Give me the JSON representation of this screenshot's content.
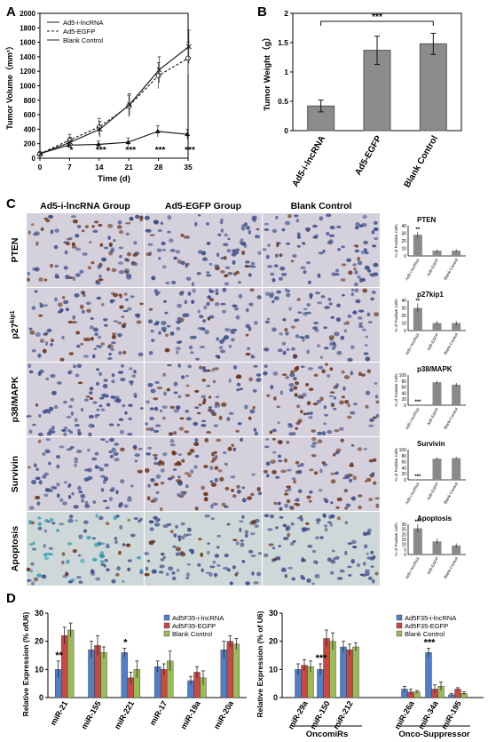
{
  "panels": {
    "A": {
      "letter": "A",
      "chart_data": {
        "type": "line",
        "xlabel": "Time (d)",
        "ylabel": "Tumor Volume（mm³）",
        "x": [
          0,
          7,
          14,
          21,
          28,
          35
        ],
        "xlim": [
          0,
          35
        ],
        "ylim": [
          0,
          2000
        ],
        "xticks": [
          0,
          7,
          14,
          21,
          28,
          35
        ],
        "yticks": [
          0,
          200,
          400,
          600,
          800,
          1000,
          1200,
          1400,
          1600,
          1800,
          2000
        ],
        "legend_position": "top-left",
        "series": [
          {
            "name": "Ad5-i-lncRNA",
            "values": [
              60,
              180,
              190,
              220,
              370,
              330
            ],
            "err": [
              20,
              40,
              50,
              60,
              80,
              70
            ],
            "marker": "triangle",
            "dash": "none"
          },
          {
            "name": "Ad5-EGFP",
            "values": [
              60,
              250,
              430,
              720,
              1140,
              1380
            ],
            "err": [
              20,
              80,
              120,
              150,
              180,
              220
            ],
            "marker": "open-circle",
            "dash": "dash"
          },
          {
            "name": "Blank Control",
            "values": [
              60,
              220,
              400,
              740,
              1220,
              1540
            ],
            "err": [
              20,
              70,
              110,
              150,
              180,
              230
            ],
            "marker": "x",
            "dash": "none"
          }
        ],
        "annotations": [
          {
            "x": 7,
            "text": "*"
          },
          {
            "x": 14,
            "text": "***"
          },
          {
            "x": 21,
            "text": "***"
          },
          {
            "x": 28,
            "text": "***"
          },
          {
            "x": 35,
            "text": "***"
          }
        ]
      }
    },
    "B": {
      "letter": "B",
      "chart_data": {
        "type": "bar",
        "ylabel": "Tumor Weight（g）",
        "categories": [
          "Ad5-i-lncRNA",
          "Ad5-EGFP",
          "Blank Control"
        ],
        "values": [
          0.42,
          1.37,
          1.48
        ],
        "err": [
          0.1,
          0.24,
          0.18
        ],
        "ylim": [
          0,
          2
        ],
        "yticks": [
          0,
          0.5,
          1,
          1.5,
          2
        ],
        "significance": "***"
      }
    },
    "C": {
      "letter": "C",
      "column_headers": [
        "Ad5-i-lncRNA Group",
        "Ad5-EGFP Group",
        "Blank Control"
      ],
      "row_labels": [
        "PTEN",
        "p27",
        "p38/MAPK",
        "Survivin",
        "Apoptosis"
      ],
      "p27_superscript": "kip1",
      "minichart_ylabel": "% of Positive Cells",
      "minichart_categories": [
        "Ad5-i-lncRNA",
        "Ad5-EGFP",
        "Blank Control"
      ],
      "minicharts": [
        {
          "title": "PTEN",
          "values": [
            28,
            7,
            7
          ],
          "err": [
            4,
            2,
            2
          ],
          "ymax": 40,
          "yticks": [
            0,
            10,
            20,
            30,
            40
          ],
          "stars": "**",
          "star_index": 0
        },
        {
          "title": "p27kip1",
          "values": [
            30,
            10,
            10
          ],
          "err": [
            6,
            3,
            3
          ],
          "ymax": 40,
          "yticks": [
            0,
            10,
            20,
            30,
            40
          ],
          "stars": "**",
          "star_index": 0
        },
        {
          "title": "p38/MAPK",
          "values": [
            2,
            76,
            68
          ],
          "err": [
            1,
            5,
            6
          ],
          "ymax": 100,
          "yticks": [
            0,
            20,
            40,
            60,
            80,
            100
          ],
          "stars": "***",
          "star_index": 0
        },
        {
          "title": "Survivin",
          "values": [
            2,
            70,
            72
          ],
          "err": [
            1,
            5,
            4
          ],
          "ymax": 100,
          "yticks": [
            0,
            20,
            40,
            60,
            80,
            100
          ],
          "stars": "***",
          "star_index": 0
        },
        {
          "title": "Apoptosis",
          "values": [
            26,
            13,
            9
          ],
          "err": [
            4,
            3,
            2
          ],
          "ymax": 30,
          "yticks": [
            0,
            5,
            10,
            15,
            20,
            25,
            30
          ],
          "stars": "***",
          "star_index": 0
        }
      ],
      "stain_colors": {
        "brown": "#6b3418",
        "blue": "#3f4f8a",
        "bg": "#d4d0dc",
        "apop_bg": "#cfd8d8",
        "apop_teal": "#3aa0b6"
      }
    },
    "D": {
      "letter": "D",
      "left": {
        "chart_data": {
          "type": "bar",
          "ylabel": "Relative Expression (% ofU6)",
          "categories": [
            "miR-21",
            "miR-155",
            "miR-221",
            "miR-17",
            "miR-19a",
            "miR-20a"
          ],
          "series": [
            {
              "name": "Ad5F35-i-lncRNA",
              "color": "#4f7fc8",
              "values": [
                10,
                17,
                16,
                11,
                6,
                17
              ],
              "err": [
                3,
                3,
                1.5,
                2,
                1.5,
                3
              ]
            },
            {
              "name": "Ad5F35-EGFP",
              "color": "#c84844",
              "values": [
                22,
                18.5,
                7,
                10,
                9,
                20
              ],
              "err": [
                3,
                3.5,
                2,
                2,
                2,
                2
              ]
            },
            {
              "name": "Blank Control",
              "color": "#9bbb59",
              "values": [
                24,
                16,
                10,
                13,
                7,
                19
              ],
              "err": [
                2.5,
                2,
                3,
                3.5,
                2.5,
                2
              ]
            }
          ],
          "ylim": [
            0,
            30
          ],
          "yticks": [
            0,
            10,
            20,
            30
          ],
          "legend_position": "top-right",
          "annotations": [
            {
              "category": 0,
              "text": "**"
            },
            {
              "category": 2,
              "text": "*"
            }
          ]
        }
      },
      "right": {
        "chart_data": {
          "type": "bar",
          "ylabel": "Relative Expression (% of U6)",
          "categories": [
            "miR-29a",
            "miR-150",
            "miR-212",
            "miR-26a",
            "miR-34a",
            "miR-195"
          ],
          "groups": [
            {
              "label": "OncomiRs",
              "members": [
                0,
                1,
                2
              ]
            },
            {
              "label": "Onco-Suppressor",
              "members": [
                3,
                4,
                5
              ]
            }
          ],
          "series": [
            {
              "name": "Ad5F35-i-lncRNA",
              "color": "#4f7fc8",
              "values": [
                10,
                10,
                18,
                3,
                16,
                1
              ],
              "err": [
                2,
                2,
                2,
                1,
                1.5,
                0.5
              ]
            },
            {
              "name": "Ad5F35-EGFP",
              "color": "#c84844",
              "values": [
                11.5,
                21,
                17,
                2,
                3,
                3
              ],
              "err": [
                2,
                3,
                2,
                1,
                1.5,
                0.5
              ]
            },
            {
              "name": "Blank Control",
              "color": "#9bbb59",
              "values": [
                11,
                20,
                18,
                2,
                4,
                1.5
              ],
              "err": [
                2,
                3,
                1.5,
                0.5,
                1.5,
                0.5
              ]
            }
          ],
          "ylim": [
            0,
            30
          ],
          "yticks": [
            0,
            10,
            20,
            30
          ],
          "legend_position": "top-right",
          "annotations": [
            {
              "category": 1,
              "text": "***"
            },
            {
              "category": 4,
              "text": "***"
            }
          ]
        }
      }
    }
  }
}
